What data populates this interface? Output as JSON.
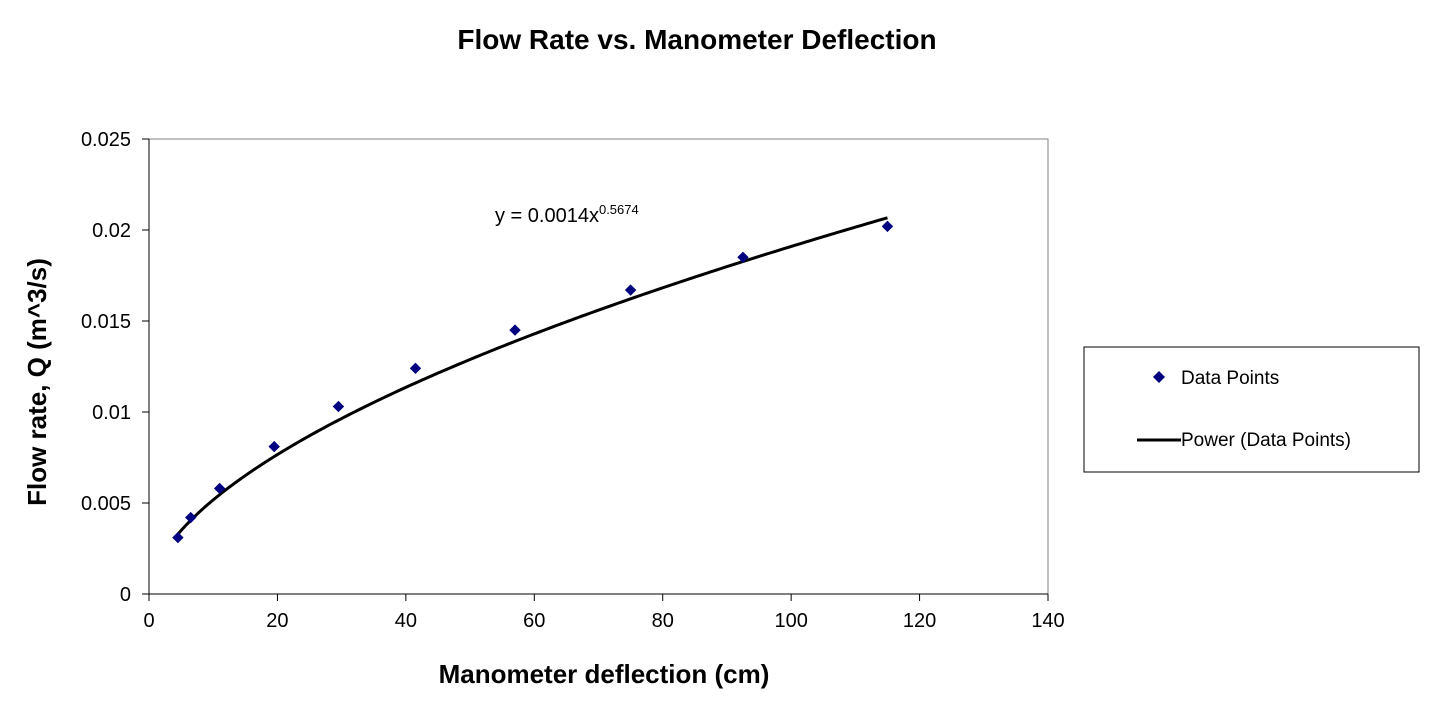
{
  "chart_data": {
    "type": "scatter",
    "title": "Flow Rate vs. Manometer Deflection",
    "xlabel": "Manometer deflection (cm)",
    "ylabel": "Flow rate, Q (m^3/s)",
    "xlim": [
      0,
      140
    ],
    "ylim": [
      0,
      0.025
    ],
    "x_ticks": [
      0,
      20,
      40,
      60,
      80,
      100,
      120,
      140
    ],
    "x_tick_labels": [
      "0",
      "20",
      "40",
      "60",
      "80",
      "100",
      "120",
      "140"
    ],
    "y_ticks": [
      0,
      0.005,
      0.01,
      0.015,
      0.02,
      0.025
    ],
    "y_tick_labels": [
      "0",
      "0.005",
      "0.01",
      "0.015",
      "0.02",
      "0.025"
    ],
    "grid": false,
    "legend_position": "right",
    "series": [
      {
        "name": "Data Points",
        "kind": "scatter",
        "marker": "diamond",
        "color": "#000080",
        "x": [
          4.5,
          6.5,
          11,
          19.5,
          29.5,
          41.5,
          57,
          75,
          92.5,
          115
        ],
        "y": [
          0.0031,
          0.0042,
          0.0058,
          0.0081,
          0.0103,
          0.0124,
          0.0145,
          0.0167,
          0.0185,
          0.0202
        ]
      },
      {
        "name": "Power (Data Points)",
        "kind": "trendline",
        "fit": "power",
        "coefficient": 0.0014,
        "exponent": 0.5674,
        "x_range": [
          4.5,
          115
        ],
        "color": "#000000"
      }
    ],
    "equation_text": {
      "prefix": "y = 0.0014x",
      "exponent": "0.5674"
    }
  },
  "legend": {
    "items": [
      {
        "label": "Data Points",
        "marker": "diamond",
        "color": "#000080"
      },
      {
        "label": "Power (Data Points)",
        "marker": "line",
        "color": "#000000"
      }
    ]
  }
}
